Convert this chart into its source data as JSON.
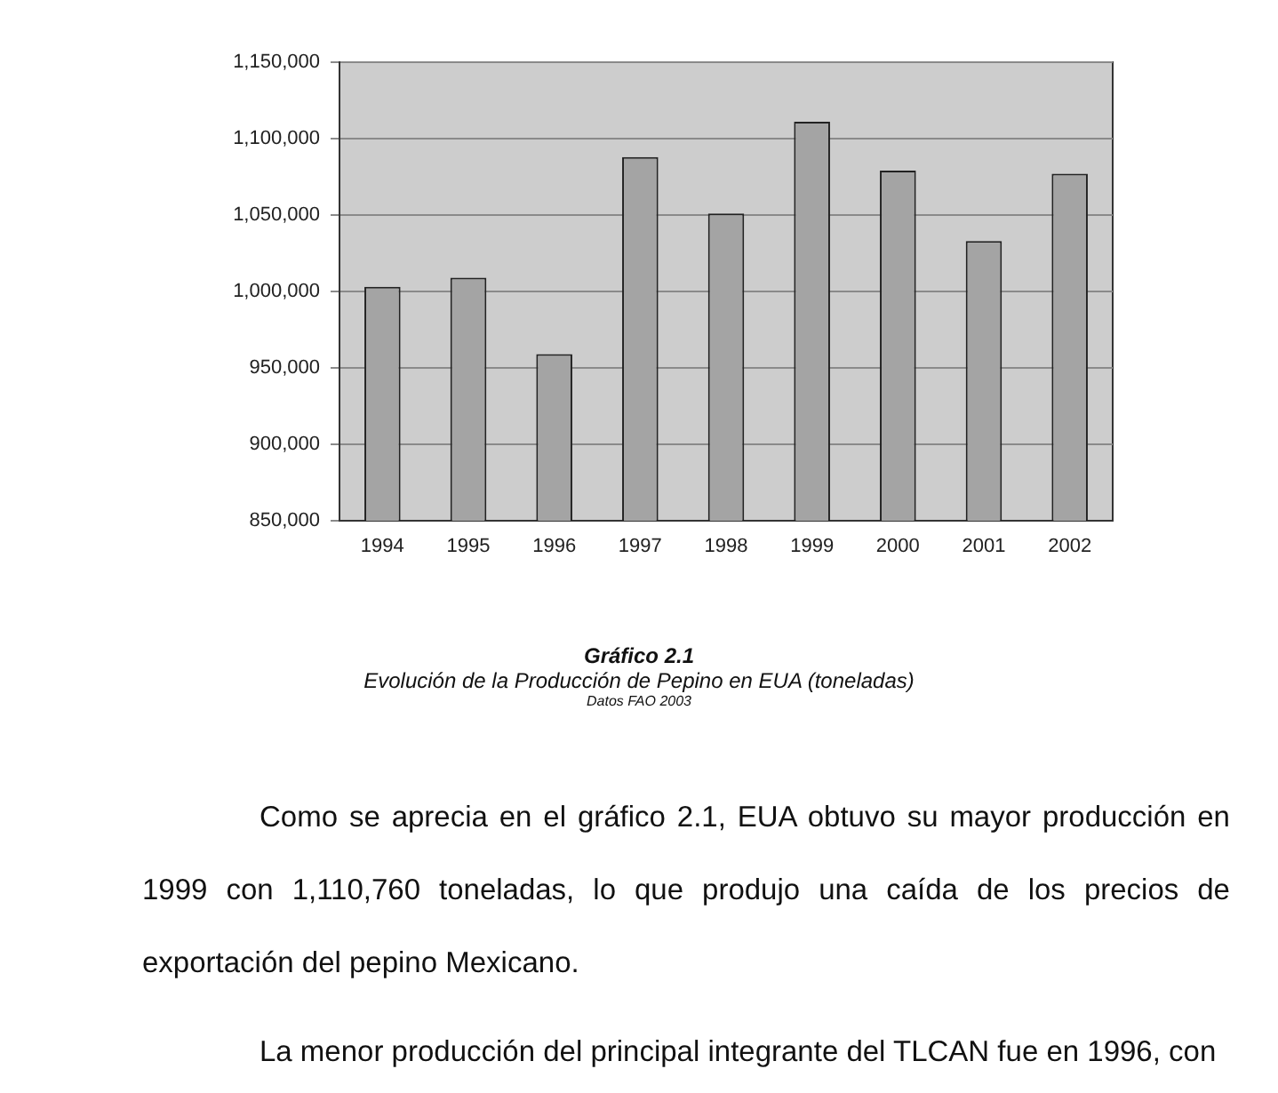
{
  "chart_data": {
    "type": "bar",
    "title": "Gráfico 2.1",
    "subtitle": "Evolución de la Producción de Pepino en EUA (toneladas)",
    "categories": [
      "1994",
      "1995",
      "1996",
      "1997",
      "1998",
      "1999",
      "2000",
      "2001",
      "2002"
    ],
    "values": [
      1003000,
      1009000,
      959000,
      1088000,
      1051000,
      1111000,
      1079000,
      1033000,
      1077000
    ],
    "color": "#a4a4a4",
    "ylim": [
      850000,
      1150000
    ],
    "yticks": [
      {
        "value": 850000,
        "label": "850,000"
      },
      {
        "value": 900000,
        "label": "900,000"
      },
      {
        "value": 950000,
        "label": "950,000"
      },
      {
        "value": 1000000,
        "label": "1,000,000"
      },
      {
        "value": 1050000,
        "label": "1,050,000"
      },
      {
        "value": 1100000,
        "label": "1,100,000"
      },
      {
        "value": 1150000,
        "label": "1,150,000"
      }
    ],
    "grid": "y",
    "annotations": [
      "Datos FAO 2003",
      "Como se aprecia en el gráfico 2.1, EUA obtuvo su mayor producción en 1999 con 1,110,760 toneladas, lo que produjo una caída de los precios de exportación del pepino Mexicano.",
      "La menor producción del principal integrante del TLCAN fue en 1996, con"
    ]
  }
}
